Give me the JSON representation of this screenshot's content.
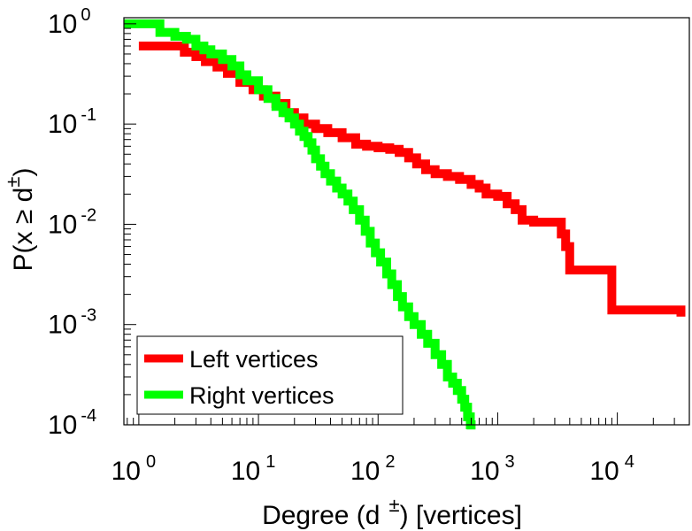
{
  "chart_data": {
    "type": "line",
    "title": "",
    "xscale": "log",
    "yscale": "log",
    "xlim": [
      0.75,
      40000
    ],
    "ylim": [
      0.0001,
      1.15
    ],
    "xlabel": {
      "prefix": "Degree (d",
      "superscript": "±",
      "suffix": ") [vertices]"
    },
    "ylabel": {
      "prefix": "P(x ≥ d",
      "superscript": "±",
      "suffix": ")"
    },
    "x_ticks": [
      {
        "base": "10",
        "exp": "0",
        "value": 1
      },
      {
        "base": "10",
        "exp": "1",
        "value": 10
      },
      {
        "base": "10",
        "exp": "2",
        "value": 100
      },
      {
        "base": "10",
        "exp": "3",
        "value": 1000
      },
      {
        "base": "10",
        "exp": "4",
        "value": 10000
      }
    ],
    "y_ticks": [
      {
        "base": "10",
        "exp": "0",
        "value": 1
      },
      {
        "base": "10",
        "exp": "-1",
        "value": 0.1
      },
      {
        "base": "10",
        "exp": "-2",
        "value": 0.01
      },
      {
        "base": "10",
        "exp": "-3",
        "value": 0.001
      },
      {
        "base": "10",
        "exp": "-4",
        "value": 0.0001
      }
    ],
    "legend_position": "bottom-left",
    "series": [
      {
        "name": "Left vertices",
        "color": "#ff0000",
        "x": [
          1,
          2,
          2.4,
          3,
          3.6,
          4.5,
          5.5,
          7,
          9,
          11,
          14,
          17,
          20,
          24,
          30,
          38,
          50,
          65,
          80,
          100,
          125,
          150,
          180,
          210,
          250,
          300,
          380,
          480,
          600,
          700,
          800,
          1000,
          1200,
          1400,
          1600,
          2000,
          2600,
          3000,
          3400,
          3700,
          4000,
          8000,
          9000,
          20000,
          33000,
          34000
        ],
        "y": [
          0.6,
          0.6,
          0.52,
          0.47,
          0.42,
          0.37,
          0.32,
          0.26,
          0.22,
          0.19,
          0.16,
          0.13,
          0.115,
          0.1,
          0.09,
          0.082,
          0.073,
          0.063,
          0.06,
          0.058,
          0.056,
          0.052,
          0.046,
          0.04,
          0.035,
          0.032,
          0.03,
          0.028,
          0.025,
          0.023,
          0.02,
          0.019,
          0.016,
          0.014,
          0.011,
          0.0105,
          0.0105,
          0.0105,
          0.008,
          0.006,
          0.0035,
          0.0035,
          0.0014,
          0.0014,
          0.0014,
          0.0012
        ]
      },
      {
        "name": "Right vertices",
        "color": "#00ff00",
        "x": [
          0.75,
          1.1,
          1.5,
          2,
          2.5,
          3,
          3.5,
          4,
          5,
          6,
          7,
          8,
          10,
          12,
          14,
          16,
          18,
          20,
          22,
          24,
          26,
          28,
          30,
          33,
          36,
          40,
          45,
          50,
          56,
          62,
          70,
          78,
          86,
          95,
          105,
          118,
          130,
          145,
          160,
          180,
          200,
          230,
          260,
          300,
          340,
          380,
          420,
          460,
          500,
          530,
          560,
          590,
          600
        ],
        "y": [
          1.0,
          1.0,
          0.82,
          0.75,
          0.7,
          0.6,
          0.55,
          0.5,
          0.44,
          0.38,
          0.31,
          0.27,
          0.22,
          0.18,
          0.15,
          0.13,
          0.115,
          0.1,
          0.085,
          0.075,
          0.065,
          0.055,
          0.045,
          0.038,
          0.032,
          0.027,
          0.023,
          0.02,
          0.017,
          0.014,
          0.011,
          0.0085,
          0.0065,
          0.0052,
          0.0042,
          0.0032,
          0.0025,
          0.0019,
          0.0015,
          0.0012,
          0.001,
          0.0008,
          0.00065,
          0.0005,
          0.0004,
          0.0003,
          0.00026,
          0.00022,
          0.00018,
          0.00015,
          0.00012,
          0.0001,
          9e-05
        ]
      }
    ]
  }
}
